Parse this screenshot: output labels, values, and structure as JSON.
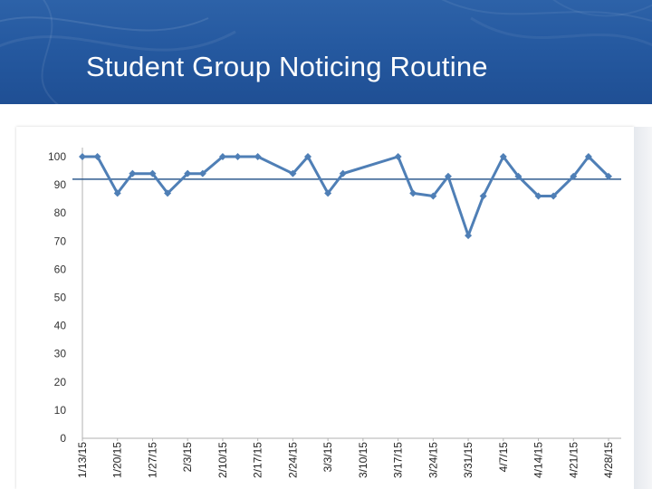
{
  "slide": {
    "title": "Student Group Noticing Routine"
  },
  "colors": {
    "banner": "#2559a0",
    "series_line": "#4f7fb6",
    "reference_line": "#2f5b8f",
    "axis": "#b0b0b0"
  },
  "chart_data": {
    "type": "line",
    "title": "",
    "xlabel": "",
    "ylabel": "",
    "ylim": [
      0,
      100
    ],
    "y_ticks": [
      0,
      10,
      20,
      30,
      40,
      50,
      60,
      70,
      80,
      90,
      100
    ],
    "grid": false,
    "legend": "none",
    "x_tick_labels": [
      "1/13/15",
      "1/20/15",
      "1/27/15",
      "2/3/15",
      "2/10/15",
      "2/17/15",
      "2/24/15",
      "3/3/15",
      "3/10/15",
      "3/17/15",
      "3/24/15",
      "3/31/15",
      "4/7/15",
      "4/14/15",
      "4/21/15",
      "4/28/15"
    ],
    "x_range": [
      "1/13/15",
      "4/28/15"
    ],
    "reference_line": {
      "y": 92
    },
    "series": [
      {
        "x": [
          "1/13/15",
          "1/16/15",
          "1/20/15",
          "1/23/15",
          "1/27/15",
          "1/30/15",
          "2/3/15",
          "2/6/15",
          "2/10/15",
          "2/13/15",
          "2/17/15",
          "2/24/15",
          "2/27/15",
          "3/3/15",
          "3/6/15",
          "3/17/15",
          "3/20/15",
          "3/24/15",
          "3/27/15",
          "3/31/15",
          "4/3/15",
          "4/7/15",
          "4/10/15",
          "4/14/15",
          "4/17/15",
          "4/21/15",
          "4/24/15",
          "4/28/15"
        ],
        "y": [
          100,
          100,
          87,
          94,
          94,
          87,
          94,
          94,
          100,
          100,
          100,
          94,
          100,
          87,
          94,
          100,
          87,
          86,
          93,
          72,
          86,
          100,
          93,
          86,
          86,
          93,
          100,
          93
        ]
      }
    ]
  }
}
